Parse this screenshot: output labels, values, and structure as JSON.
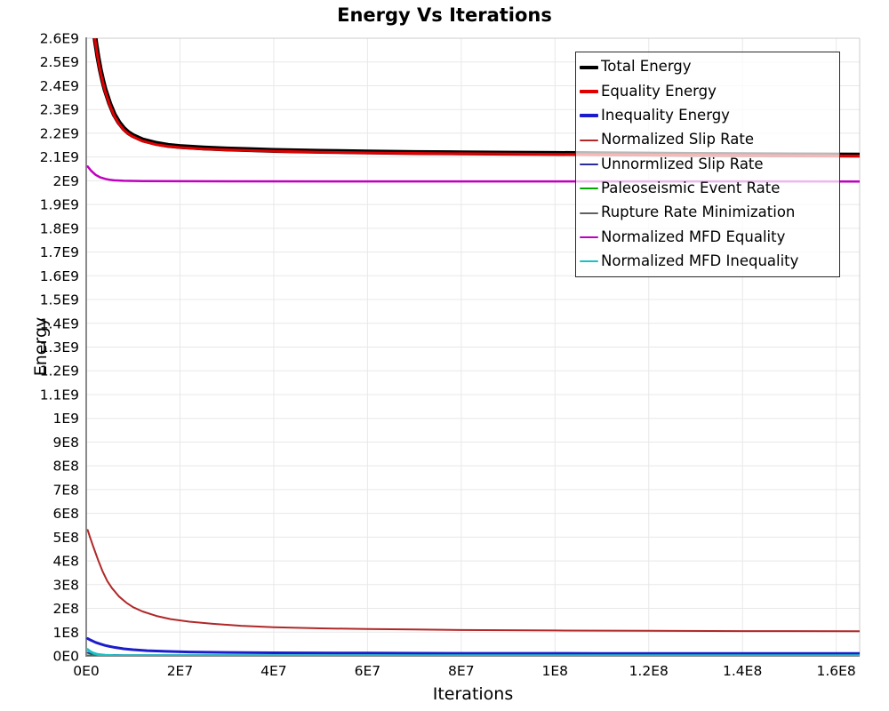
{
  "title": "Energy Vs Iterations",
  "chart_data": {
    "type": "line",
    "title": "Energy Vs Iterations",
    "xlabel": "Iterations",
    "ylabel": "Energy",
    "xlim": [
      0,
      165000000
    ],
    "ylim": [
      0,
      2600000000
    ],
    "grid": true,
    "legend_position": "top-right-inside",
    "legend_border_color": "#2a2a2a",
    "grid_color": "#e8e8e8",
    "axis_color": "#8a8a8a",
    "frame_color": "#cccccc",
    "x_ticks": [
      {
        "v": 0,
        "label": "0E0"
      },
      {
        "v": 20000000,
        "label": "2E7"
      },
      {
        "v": 40000000,
        "label": "4E7"
      },
      {
        "v": 60000000,
        "label": "6E7"
      },
      {
        "v": 80000000,
        "label": "8E7"
      },
      {
        "v": 100000000,
        "label": "1E8"
      },
      {
        "v": 120000000,
        "label": "1.2E8"
      },
      {
        "v": 140000000,
        "label": "1.4E8"
      },
      {
        "v": 160000000,
        "label": "1.6E8"
      }
    ],
    "y_ticks": [
      {
        "v": 0,
        "label": "0E0"
      },
      {
        "v": 100000000,
        "label": "1E8"
      },
      {
        "v": 200000000,
        "label": "2E8"
      },
      {
        "v": 300000000,
        "label": "3E8"
      },
      {
        "v": 400000000,
        "label": "4E8"
      },
      {
        "v": 500000000,
        "label": "5E8"
      },
      {
        "v": 600000000,
        "label": "6E8"
      },
      {
        "v": 700000000,
        "label": "7E8"
      },
      {
        "v": 800000000,
        "label": "8E8"
      },
      {
        "v": 900000000,
        "label": "9E8"
      },
      {
        "v": 1000000000,
        "label": "1E9"
      },
      {
        "v": 1100000000,
        "label": "1.1E9"
      },
      {
        "v": 1200000000,
        "label": "1.2E9"
      },
      {
        "v": 1300000000,
        "label": "1.3E9"
      },
      {
        "v": 1400000000,
        "label": "1.4E9"
      },
      {
        "v": 1500000000,
        "label": "1.5E9"
      },
      {
        "v": 1600000000,
        "label": "1.6E9"
      },
      {
        "v": 1700000000,
        "label": "1.7E9"
      },
      {
        "v": 1800000000,
        "label": "1.8E9"
      },
      {
        "v": 1900000000,
        "label": "1.9E9"
      },
      {
        "v": 2000000000,
        "label": "2E9"
      },
      {
        "v": 2100000000,
        "label": "2.1E9"
      },
      {
        "v": 2200000000,
        "label": "2.2E9"
      },
      {
        "v": 2300000000,
        "label": "2.3E9"
      },
      {
        "v": 2400000000,
        "label": "2.4E9"
      },
      {
        "v": 2500000000,
        "label": "2.5E9"
      },
      {
        "v": 2600000000,
        "label": "2.6E9"
      }
    ],
    "series": [
      {
        "name": "Total Energy",
        "color": "#000000",
        "stroke_width": 5.5,
        "legend_weight": 4,
        "points": [
          [
            300000,
            3000000000
          ],
          [
            800000,
            2830000000
          ],
          [
            1500000,
            2665000000
          ],
          [
            2000000,
            2585000000
          ],
          [
            2500000,
            2520000000
          ],
          [
            3000000,
            2468000000
          ],
          [
            3500000,
            2423000000
          ],
          [
            4000000,
            2385000000
          ],
          [
            5000000,
            2325000000
          ],
          [
            6000000,
            2278000000
          ],
          [
            7000000,
            2245000000
          ],
          [
            8000000,
            2220000000
          ],
          [
            9000000,
            2202000000
          ],
          [
            10000000,
            2190000000
          ],
          [
            12000000,
            2172000000
          ],
          [
            15000000,
            2157000000
          ],
          [
            17500000,
            2149000000
          ],
          [
            20000000,
            2144000000
          ],
          [
            25000000,
            2138000000
          ],
          [
            30000000,
            2134000000
          ],
          [
            35000000,
            2131000000
          ],
          [
            40000000,
            2128000000
          ],
          [
            50000000,
            2124000000
          ],
          [
            60000000,
            2121000000
          ],
          [
            70000000,
            2119000000
          ],
          [
            80000000,
            2117500000
          ],
          [
            90000000,
            2116000000
          ],
          [
            100000000,
            2115000000
          ],
          [
            110000000,
            2113500000
          ],
          [
            120000000,
            2112000000
          ],
          [
            130000000,
            2111000000
          ],
          [
            140000000,
            2110000000
          ],
          [
            150000000,
            2109000000
          ],
          [
            165000000,
            2108000000
          ]
        ]
      },
      {
        "name": "Equality Energy",
        "color": "#e00000",
        "stroke_width": 3,
        "legend_weight": 4,
        "points": [
          [
            300000,
            2992000000
          ],
          [
            800000,
            2822000000
          ],
          [
            1500000,
            2658000000
          ],
          [
            2000000,
            2578000000
          ],
          [
            2500000,
            2513000000
          ],
          [
            3000000,
            2461000000
          ],
          [
            3500000,
            2417000000
          ],
          [
            4000000,
            2379000000
          ],
          [
            5000000,
            2319000000
          ],
          [
            6000000,
            2272000000
          ],
          [
            7000000,
            2239000000
          ],
          [
            8000000,
            2214000000
          ],
          [
            9000000,
            2197000000
          ],
          [
            10000000,
            2185000000
          ],
          [
            12000000,
            2167000000
          ],
          [
            15000000,
            2152000000
          ],
          [
            17500000,
            2145000000
          ],
          [
            20000000,
            2140000000
          ],
          [
            25000000,
            2134000000
          ],
          [
            30000000,
            2130000000
          ],
          [
            35000000,
            2127000000
          ],
          [
            40000000,
            2124500000
          ],
          [
            50000000,
            2120500000
          ],
          [
            60000000,
            2117500000
          ],
          [
            70000000,
            2115500000
          ],
          [
            80000000,
            2114000000
          ],
          [
            90000000,
            2112500000
          ],
          [
            100000000,
            2111500000
          ],
          [
            110000000,
            2110000000
          ],
          [
            120000000,
            2108500000
          ],
          [
            130000000,
            2107500000
          ],
          [
            140000000,
            2106500000
          ],
          [
            150000000,
            2105500000
          ],
          [
            165000000,
            2104500000
          ]
        ]
      },
      {
        "name": "Inequality Energy",
        "color": "#1c1ccc",
        "stroke_width": 3,
        "legend_weight": 4,
        "points": [
          [
            300000,
            73000000
          ],
          [
            1000000,
            66000000
          ],
          [
            2000000,
            57000000
          ],
          [
            3000000,
            50000000
          ],
          [
            4000000,
            44000000
          ],
          [
            5000000,
            39500000
          ],
          [
            6000000,
            36000000
          ],
          [
            8000000,
            30000000
          ],
          [
            10000000,
            26000000
          ],
          [
            13000000,
            22000000
          ],
          [
            17000000,
            19000000
          ],
          [
            22000000,
            16500000
          ],
          [
            30000000,
            14500000
          ],
          [
            40000000,
            13000000
          ],
          [
            60000000,
            11800000
          ],
          [
            80000000,
            11000000
          ],
          [
            110000000,
            10500000
          ],
          [
            165000000,
            10000000
          ]
        ]
      },
      {
        "name": "Normalized Slip Rate",
        "color": "#b02828",
        "stroke_width": 2,
        "legend_weight": 2,
        "points": [
          [
            300000,
            530000000
          ],
          [
            800000,
            500000000
          ],
          [
            1500000,
            460000000
          ],
          [
            2500000,
            405000000
          ],
          [
            3500000,
            355000000
          ],
          [
            4500000,
            315000000
          ],
          [
            5500000,
            285000000
          ],
          [
            7000000,
            250000000
          ],
          [
            8500000,
            225000000
          ],
          [
            10000000,
            205000000
          ],
          [
            12000000,
            187000000
          ],
          [
            15000000,
            168000000
          ],
          [
            18000000,
            155000000
          ],
          [
            22000000,
            144000000
          ],
          [
            27000000,
            135000000
          ],
          [
            33000000,
            127000000
          ],
          [
            40000000,
            121000000
          ],
          [
            50000000,
            116000000
          ],
          [
            60000000,
            113000000
          ],
          [
            70000000,
            111000000
          ],
          [
            80000000,
            109000000
          ],
          [
            100000000,
            107000000
          ],
          [
            120000000,
            105500000
          ],
          [
            140000000,
            104500000
          ],
          [
            165000000,
            103500000
          ]
        ]
      },
      {
        "name": "Unnormlized Slip Rate",
        "color": "#2b2b9e",
        "stroke_width": 2,
        "legend_weight": 2,
        "points": [
          [
            300000,
            13000000
          ],
          [
            1000000,
            9000000
          ],
          [
            2000000,
            6000000
          ],
          [
            4000000,
            4000000
          ],
          [
            8000000,
            3000000
          ],
          [
            20000000,
            2500000
          ],
          [
            165000000,
            2200000
          ]
        ]
      },
      {
        "name": "Paleoseismic Event Rate",
        "color": "#00a800",
        "stroke_width": 2,
        "legend_weight": 2,
        "points": [
          [
            300000,
            2000000
          ],
          [
            10000000,
            1700000
          ],
          [
            165000000,
            1500000
          ]
        ]
      },
      {
        "name": "Rupture Rate Minimization",
        "color": "#606060",
        "stroke_width": 2,
        "legend_weight": 2,
        "points": [
          [
            300000,
            1000000
          ],
          [
            165000000,
            800000
          ]
        ]
      },
      {
        "name": "Normalized MFD Equality",
        "color": "#bf00bf",
        "stroke_width": 2.5,
        "legend_weight": 2,
        "points": [
          [
            300000,
            2060000000
          ],
          [
            1000000,
            2043000000
          ],
          [
            2000000,
            2025000000
          ],
          [
            3000000,
            2014000000
          ],
          [
            4000000,
            2008000000
          ],
          [
            5000000,
            2004000000
          ],
          [
            6000000,
            2002000000
          ],
          [
            8000000,
            2000000000
          ],
          [
            12000000,
            1999000000
          ],
          [
            20000000,
            1998000000
          ],
          [
            60000000,
            1997500000
          ],
          [
            165000000,
            1997000000
          ]
        ]
      },
      {
        "name": "Normalized MFD Inequality",
        "color": "#18c2c2",
        "stroke_width": 3,
        "legend_weight": 2,
        "points": [
          [
            300000,
            27000000
          ],
          [
            800000,
            19000000
          ],
          [
            1500000,
            12000000
          ],
          [
            2500000,
            6000000
          ],
          [
            4000000,
            2500000
          ],
          [
            6000000,
            1200000
          ],
          [
            10000000,
            800000
          ],
          [
            165000000,
            600000
          ]
        ]
      }
    ]
  }
}
